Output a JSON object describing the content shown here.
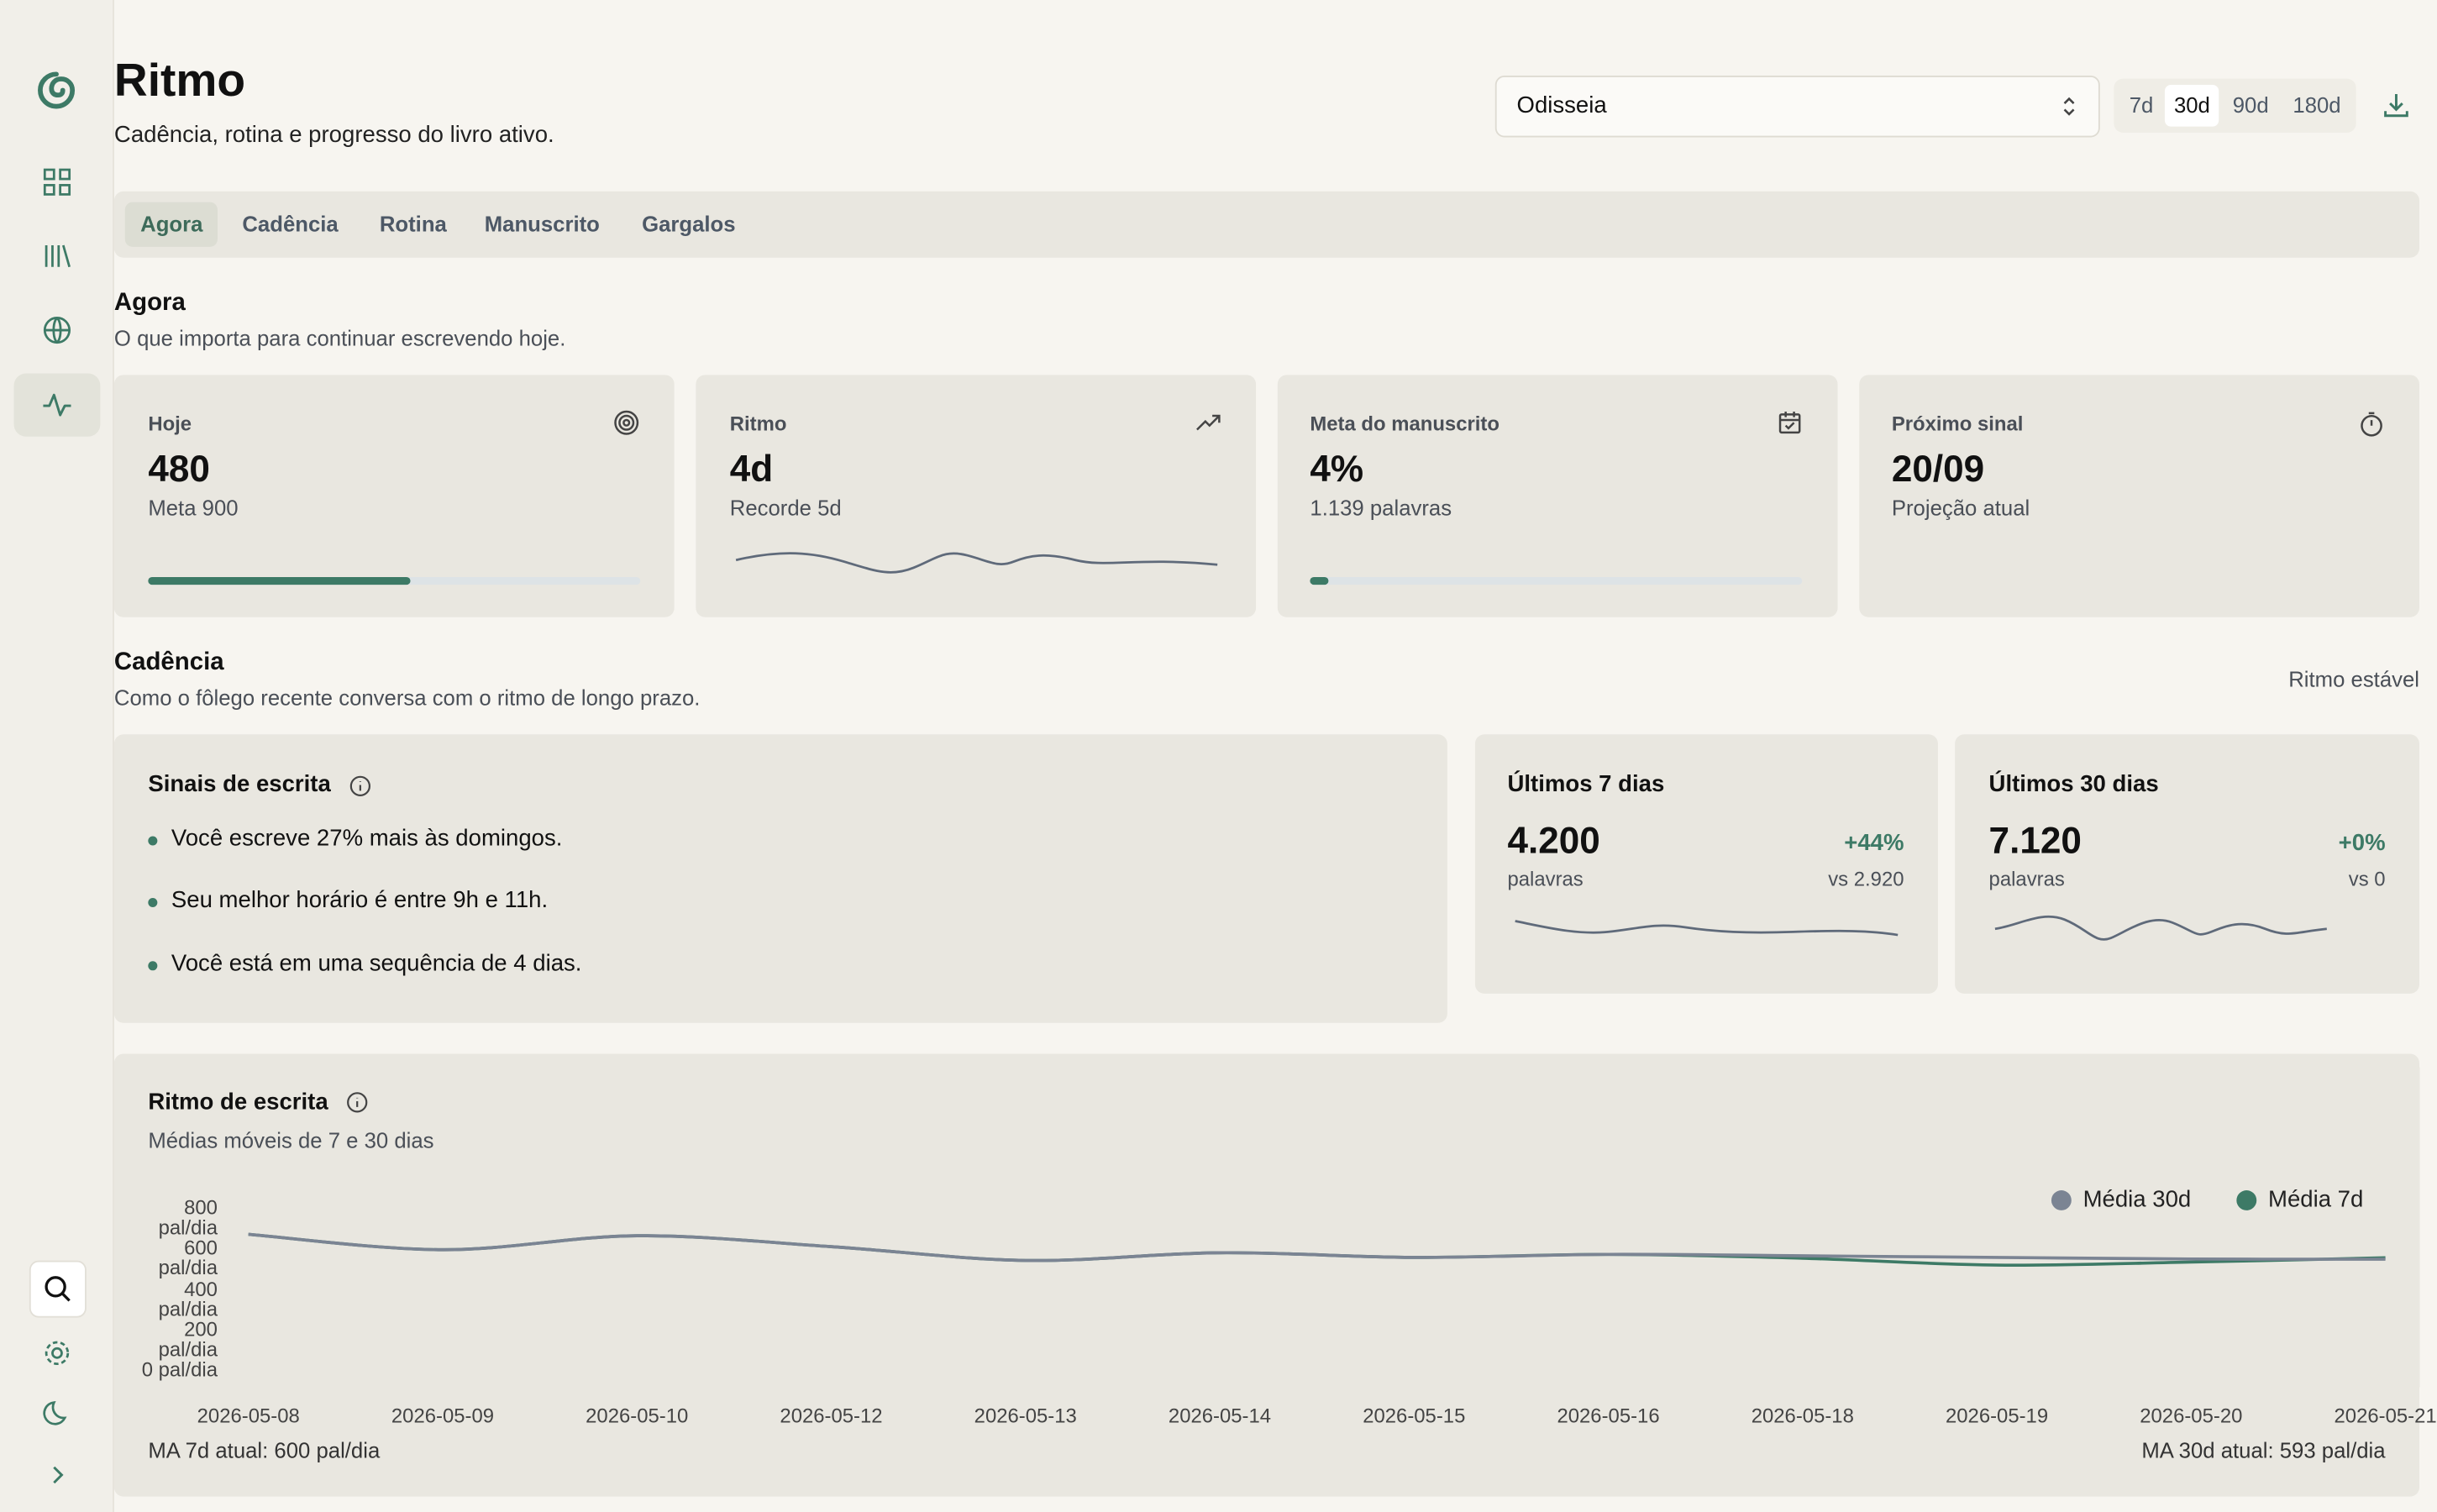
{
  "header": {
    "title": "Ritmo",
    "subtitle": "Cadência, rotina e progresso do livro ativo.",
    "book": "Odisseia",
    "ranges": [
      "7d",
      "30d",
      "90d",
      "180d"
    ]
  },
  "tabs": [
    "Agora",
    "Cadência",
    "Rotina",
    "Manuscrito",
    "Gargalos"
  ],
  "now": {
    "title": "Agora",
    "subtitle": "O que importa para continuar escrevendo hoje.",
    "cards": [
      {
        "label": "Hoje",
        "value": "480",
        "detail": "Meta 900"
      },
      {
        "label": "Ritmo",
        "value": "4d",
        "detail": "Recorde 5d"
      },
      {
        "label": "Meta do manuscrito",
        "value": "4%",
        "detail": "1.139 palavras"
      },
      {
        "label": "Próximo sinal",
        "value": "20/09",
        "detail": "Projeção atual"
      }
    ]
  },
  "cadence": {
    "title": "Cadência",
    "subtitle": "Como o fôlego recente conversa com o ritmo de longo prazo.",
    "status": "Ritmo estável",
    "signals": {
      "title": "Sinais de escrita",
      "items": [
        "Você escreve 27% mais às domingos.",
        "Seu melhor horário é entre 9h e 11h.",
        "Você está em uma sequência de 4 dias."
      ]
    },
    "periods": [
      {
        "label": "Últimos 7 dias",
        "value": "4.200",
        "unit": "palavras",
        "change": "+44%",
        "compare": "vs 2.920"
      },
      {
        "label": "Últimos 30 dias",
        "value": "7.120",
        "unit": "palavras",
        "change": "+0%",
        "compare": "vs 0"
      }
    ]
  },
  "chart_data": {
    "type": "line",
    "title": "Ritmo de escrita",
    "subtitle": "Médias móveis de 7 e 30 dias",
    "categories": [
      "2026-05-08",
      "2026-05-09",
      "2026-05-10",
      "2026-05-12",
      "2026-05-13",
      "2026-05-14",
      "2026-05-15",
      "2026-05-16",
      "2026-05-18",
      "2026-05-19",
      "2026-05-20",
      "2026-05-21"
    ],
    "series": [
      {
        "name": "Média 30d",
        "color": "#7b8493",
        "values": [
          716,
          640,
          709,
          655,
          587,
          625,
          602,
          617,
          610,
          602,
          594,
          593
        ]
      },
      {
        "name": "Média 7d",
        "color": "#3d7a66",
        "values": [
          716,
          640,
          709,
          655,
          587,
          625,
          602,
          617,
          598,
          564,
          579,
          600
        ]
      }
    ],
    "ylim": [
      0,
      800
    ],
    "yticks": [
      {
        "value": 800,
        "label": "800 pal/dia"
      },
      {
        "value": 600,
        "label": "600 pal/dia"
      },
      {
        "value": 400,
        "label": "400 pal/dia"
      },
      {
        "value": 200,
        "label": "200 pal/dia"
      },
      {
        "value": 0,
        "label": "0 pal/dia"
      }
    ],
    "legend": "top-right",
    "footer_left": "MA 7d atual: 600 pal/dia",
    "footer_right": "MA 30d atual: 593 pal/dia"
  }
}
